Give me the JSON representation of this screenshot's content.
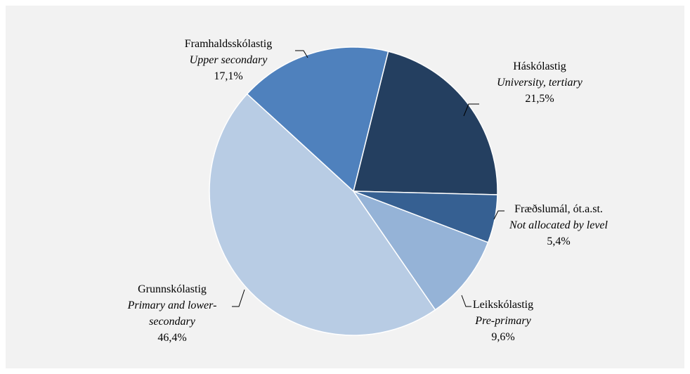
{
  "chart_data": {
    "type": "pie",
    "categories": [
      "Háskólastig",
      "Fræðslumál, ót.a.st.",
      "Leikskólastig",
      "Grunnskólastig",
      "Framhaldsskólastig"
    ],
    "category_translations": [
      "University, tertiary",
      "Not allocated by level",
      "Pre-primary",
      "Primary and lower-secondary",
      "Upper secondary"
    ],
    "values": [
      21.5,
      5.4,
      9.6,
      46.4,
      17.1
    ],
    "value_labels": [
      "21,5%",
      "5,4%",
      "9,6%",
      "46,4%",
      "17,1%"
    ],
    "colors": [
      "#243f60",
      "#366092",
      "#95b3d7",
      "#b8cce4",
      "#4f81bd"
    ]
  }
}
